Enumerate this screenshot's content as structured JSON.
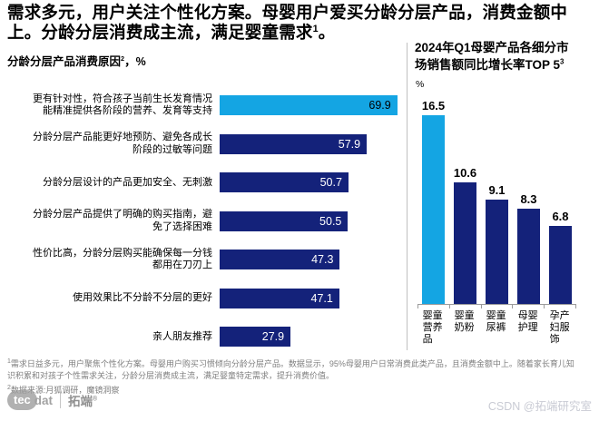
{
  "title": {
    "lines": [
      "需求多元，用户关注个性化方案。母婴用户爱买分龄分层产品，消费金额中",
      "上。分龄分层消费成主流，满足婴童需求"
    ],
    "sup": "1",
    "suffix": "。"
  },
  "colors": {
    "highlight": "#14A5E3",
    "primary": "#14227A",
    "value_on_highlight": "#000000",
    "value_on_primary": "#FFFFFF",
    "axis": "#9C9C9C",
    "divider": "#C0C0C0",
    "footnote_text": "#7F7F7F",
    "watermark": "#C9CBD4"
  },
  "chart_data": [
    {
      "type": "bar",
      "orientation": "horizontal",
      "title": "分龄分层产品消费原因",
      "title_sup": "2",
      "title_suffix": "，%",
      "categories": [
        [
          "更有针对性，符合孩子当前生长发育情况",
          "能精准提供各阶段的营养、发育等支持"
        ],
        [
          "分龄分层产品能更好地预防、避免各成长",
          "阶段的过敏等问题"
        ],
        [
          "分龄分层设计的产品更加安全、无刺激"
        ],
        [
          "分龄分层产品提供了明确的购买指南，避",
          "免了选择困难"
        ],
        [
          "性价比高，分龄分层购买能确保每一分钱",
          "都用在刀刃上"
        ],
        [
          "使用效果比不分龄不分层的更好"
        ],
        [
          "亲人朋友推荐"
        ]
      ],
      "values": [
        69.9,
        57.9,
        50.7,
        50.5,
        47.3,
        47.1,
        27.9
      ],
      "highlight_index": 0,
      "xlim": [
        0,
        75
      ],
      "value_labels_shown": true,
      "legend": "none",
      "grid": false
    },
    {
      "type": "bar",
      "orientation": "vertical",
      "title_lines": [
        "2024年Q1母婴产品各细分市",
        "场销售额同比增长率TOP 5"
      ],
      "title_sup": "3",
      "ylabel": "%",
      "categories": [
        "婴童营养品",
        "婴童奶粉",
        "婴童尿裤",
        "母婴护理",
        "孕产妇服饰"
      ],
      "values": [
        16.5,
        10.6,
        9.1,
        8.3,
        6.8
      ],
      "highlight_index": 0,
      "ylim": [
        0,
        18
      ],
      "value_labels_shown": true,
      "legend": "none",
      "grid": false
    }
  ],
  "footnotes": [
    {
      "sup": "1",
      "text": "需求日益多元，用户聚焦个性化方案。母婴用户购买习惯倾向分龄分层产品。数据显示，95%母婴用户日常消费此类产品，且消费金额中上。随着家长育儿知识积累和对孩子个性需求关注，分龄分层消费成主流，满足婴童特定需求，提升消费价值。"
    },
    {
      "sup": "2",
      "text": "数据来源:月狐调研，魔镜洞察"
    }
  ],
  "footer": {
    "logo_circle": "tec",
    "logo_rest": "dat",
    "brand": "拓端",
    "reg_mark": "®"
  },
  "watermark": "CSDN @拓端研究室"
}
